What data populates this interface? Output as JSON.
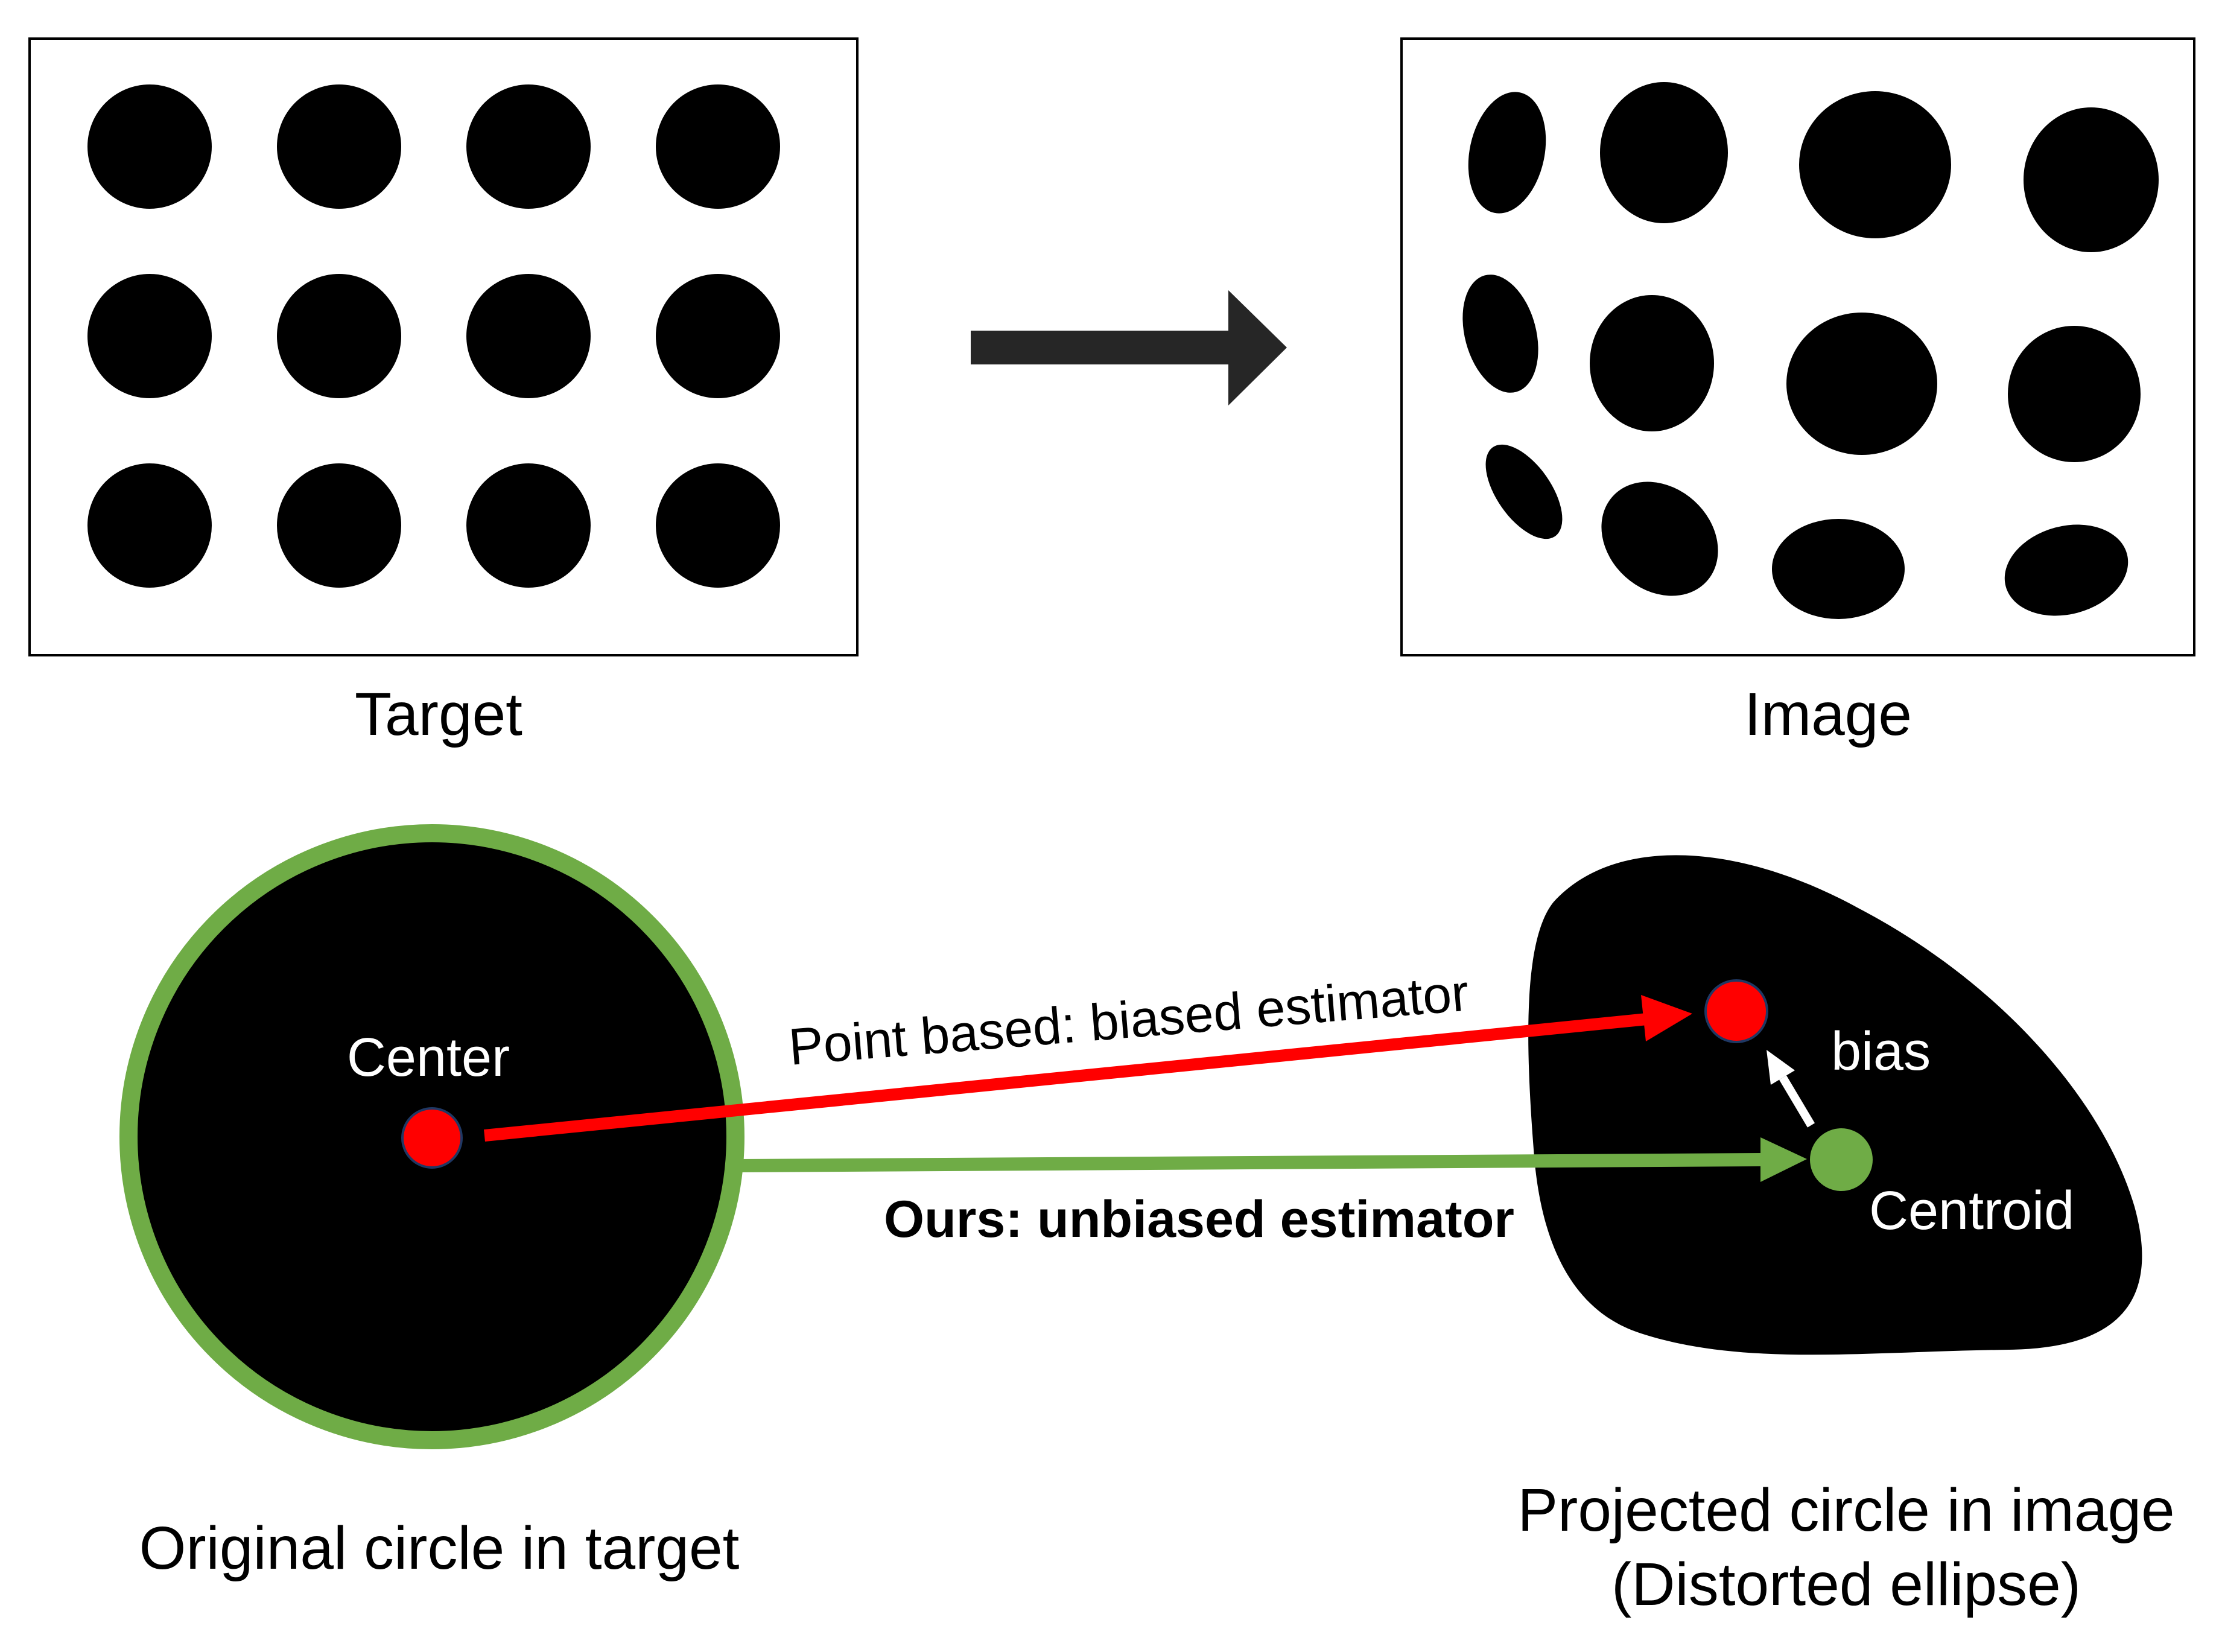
{
  "labels": {
    "target": "Target",
    "image": "Image",
    "center": "Center",
    "bias": "bias",
    "centroid": "Centroid",
    "point_based": "Point based: biased estimator",
    "ours": "Ours: unbiased estimator",
    "original_circle": "Original circle in target",
    "projected_line1": "Projected circle in image",
    "projected_line2": "(Distorted ellipse)"
  },
  "colors": {
    "background": "#ffffff",
    "ink": "#000000",
    "green": "#6fac46",
    "red": "#ff0000",
    "dark_arrow": "#262626",
    "white": "#ffffff"
  },
  "target_grid": {
    "rows": 3,
    "cols": 4
  }
}
